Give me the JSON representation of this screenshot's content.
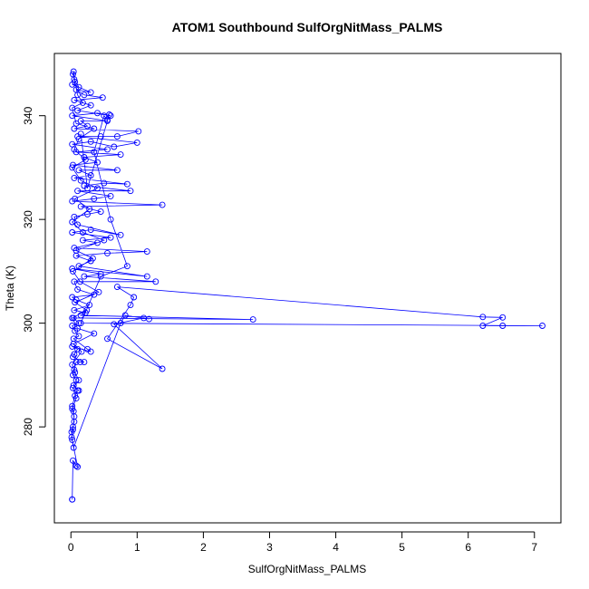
{
  "chart_data": {
    "type": "scatter",
    "title": "ATOM1 Southbound SulfOrgNitMass_PALMS",
    "xlabel": "SulfOrgNitMass_PALMS",
    "ylabel": "Theta (K)",
    "xlim": [
      -0.25,
      7.4
    ],
    "ylim": [
      261.5,
      352
    ],
    "xticks": [
      0,
      1,
      2,
      3,
      4,
      5,
      6,
      7
    ],
    "yticks": [
      280,
      300,
      320,
      340
    ],
    "series_color": "#0000ff",
    "grid": false,
    "legend": "none",
    "series": [
      {
        "values": [
          [
            0.02,
            266.0
          ],
          [
            0.02,
            266.0
          ],
          [
            0.03,
            273.5
          ],
          [
            0.08,
            272.5
          ],
          [
            0.1,
            272.3
          ],
          [
            0.02,
            277.5
          ],
          [
            0.01,
            279.0
          ],
          [
            0.03,
            280.0
          ],
          [
            0.05,
            281.0
          ],
          [
            0.04,
            283.0
          ],
          [
            0.02,
            284.0
          ],
          [
            0.06,
            286.0
          ],
          [
            0.1,
            287.0
          ],
          [
            0.12,
            287.0
          ],
          [
            0.04,
            288.0
          ],
          [
            0.08,
            289.0
          ],
          [
            0.03,
            290.0
          ],
          [
            0.05,
            291.0
          ],
          [
            0.08,
            292.5
          ],
          [
            0.14,
            292.5
          ],
          [
            0.2,
            292.5
          ],
          [
            0.03,
            293.5
          ],
          [
            0.05,
            294.0
          ],
          [
            0.1,
            295.0
          ],
          [
            0.02,
            295.5
          ],
          [
            0.3,
            294.5
          ],
          [
            0.25,
            295.0
          ],
          [
            0.04,
            297.0
          ],
          [
            0.12,
            297.5
          ],
          [
            0.06,
            298.5
          ],
          [
            0.02,
            299.5
          ],
          [
            0.12,
            300.0
          ],
          [
            0.04,
            301.0
          ],
          [
            2.75,
            300.7
          ],
          [
            0.15,
            301.5
          ],
          [
            0.22,
            302.0
          ],
          [
            0.05,
            302.5
          ],
          [
            0.28,
            303.5
          ],
          [
            0.08,
            304.5
          ],
          [
            0.02,
            305.0
          ],
          [
            0.35,
            305.5
          ],
          [
            0.1,
            306.5
          ],
          [
            0.05,
            308.0
          ],
          [
            1.28,
            308.0
          ],
          [
            0.2,
            309.0
          ],
          [
            0.45,
            309.5
          ],
          [
            0.02,
            310.5
          ],
          [
            1.15,
            309.0
          ],
          [
            0.12,
            311.0
          ],
          [
            0.3,
            312.0
          ],
          [
            0.08,
            313.0
          ],
          [
            0.55,
            313.5
          ],
          [
            1.15,
            313.8
          ],
          [
            0.05,
            314.5
          ],
          [
            0.4,
            315.5
          ],
          [
            0.18,
            316.0
          ],
          [
            0.6,
            316.5
          ],
          [
            0.02,
            317.5
          ],
          [
            0.3,
            318.0
          ],
          [
            0.75,
            317.0
          ],
          [
            0.1,
            319.0
          ],
          [
            0.05,
            320.5
          ],
          [
            0.25,
            321.0
          ],
          [
            0.45,
            321.5
          ],
          [
            0.15,
            322.5
          ],
          [
            1.38,
            322.8
          ],
          [
            0.02,
            323.5
          ],
          [
            0.35,
            324.0
          ],
          [
            0.6,
            324.5
          ],
          [
            0.1,
            325.5
          ],
          [
            0.9,
            325.5
          ],
          [
            0.2,
            326.5
          ],
          [
            0.5,
            327.0
          ],
          [
            0.85,
            326.8
          ],
          [
            0.05,
            328.0
          ],
          [
            0.3,
            328.5
          ],
          [
            0.12,
            329.5
          ],
          [
            0.7,
            329.5
          ],
          [
            0.03,
            330.5
          ],
          [
            0.4,
            331.0
          ],
          [
            0.2,
            332.0
          ],
          [
            0.75,
            332.5
          ],
          [
            0.08,
            333.0
          ],
          [
            0.55,
            333.5
          ],
          [
            0.02,
            334.5
          ],
          [
            0.3,
            335.0
          ],
          [
            0.65,
            334.0
          ],
          [
            1.0,
            334.8
          ],
          [
            0.1,
            336.0
          ],
          [
            0.45,
            336.0
          ],
          [
            0.7,
            336.0
          ],
          [
            1.02,
            337.0
          ],
          [
            0.05,
            337.5
          ],
          [
            0.25,
            338.0
          ],
          [
            0.15,
            339.0
          ],
          [
            0.55,
            339.0
          ],
          [
            0.02,
            340.0
          ],
          [
            0.4,
            340.5
          ],
          [
            0.6,
            340.0
          ],
          [
            0.1,
            341.0
          ],
          [
            0.3,
            342.0
          ],
          [
            0.05,
            343.0
          ],
          [
            0.48,
            343.5
          ],
          [
            0.2,
            344.0
          ],
          [
            0.08,
            345.0
          ],
          [
            0.3,
            344.5
          ],
          [
            0.02,
            346.0
          ],
          [
            0.12,
            345.5
          ],
          [
            0.05,
            347.0
          ],
          [
            0.03,
            348.0
          ],
          [
            0.04,
            348.5
          ],
          [
            0.06,
            346.5
          ],
          [
            0.1,
            344.0
          ],
          [
            0.18,
            342.5
          ],
          [
            0.02,
            341.5
          ],
          [
            0.08,
            338.5
          ],
          [
            0.35,
            337.5
          ],
          [
            0.12,
            335.5
          ],
          [
            0.05,
            333.5
          ],
          [
            0.22,
            331.5
          ],
          [
            0.02,
            330.0
          ],
          [
            0.15,
            327.5
          ],
          [
            0.4,
            326.0
          ],
          [
            0.06,
            324.0
          ],
          [
            0.28,
            322.0
          ],
          [
            0.02,
            319.5
          ],
          [
            0.18,
            317.5
          ],
          [
            0.5,
            316.0
          ],
          [
            0.08,
            314.0
          ],
          [
            0.33,
            312.5
          ],
          [
            0.03,
            310.0
          ],
          [
            0.14,
            308.0
          ],
          [
            0.42,
            306.0
          ],
          [
            0.06,
            304.0
          ],
          [
            0.24,
            302.5
          ],
          [
            0.02,
            301.0
          ],
          [
            0.1,
            299.0
          ],
          [
            0.35,
            298.0
          ],
          [
            0.04,
            296.0
          ],
          [
            0.16,
            294.5
          ],
          [
            0.02,
            292.0
          ],
          [
            0.06,
            290.5
          ],
          [
            0.12,
            289.0
          ],
          [
            0.03,
            287.5
          ],
          [
            0.08,
            285.5
          ],
          [
            0.02,
            283.5
          ],
          [
            0.05,
            282.0
          ],
          [
            0.03,
            279.5
          ],
          [
            0.01,
            278.0
          ],
          [
            0.04,
            276.0
          ],
          [
            0.75,
            300.0
          ],
          [
            0.82,
            301.5
          ],
          [
            1.18,
            300.8
          ],
          [
            1.1,
            301.0
          ],
          [
            0.65,
            299.8
          ],
          [
            1.38,
            291.2
          ],
          [
            0.55,
            297.0
          ],
          [
            0.9,
            303.5
          ],
          [
            0.95,
            305.0
          ],
          [
            0.7,
            307.0
          ],
          [
            6.22,
            301.2
          ],
          [
            6.52,
            301.1
          ],
          [
            6.22,
            299.5
          ],
          [
            6.52,
            299.5
          ],
          [
            7.12,
            299.5
          ],
          [
            0.15,
            300.0
          ],
          [
            0.45,
            309.0
          ],
          [
            0.85,
            311.0
          ],
          [
            0.6,
            320.0
          ],
          [
            0.35,
            333.0
          ],
          [
            0.5,
            340.0
          ],
          [
            0.55,
            339.2
          ],
          [
            0.58,
            340.2
          ],
          [
            0.25,
            326.0
          ],
          [
            0.15,
            336.5
          ]
        ]
      }
    ]
  }
}
